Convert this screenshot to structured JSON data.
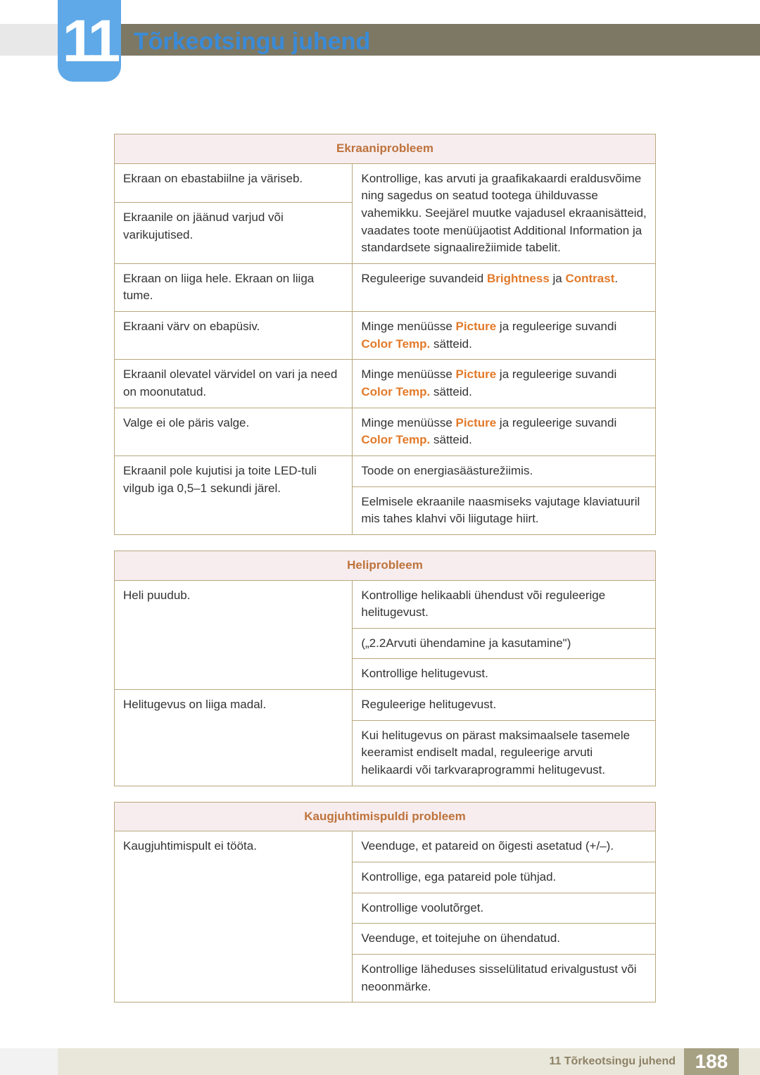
{
  "chapter_number": "11",
  "heading": "Tõrkeotsingu juhend",
  "colors": {
    "badge_bg": "#5fa9e8",
    "heading": "#3a8bd8",
    "stripe_right": "#7c7864",
    "stripe_left": "#e8e8e8",
    "table_border": "#b9a87e",
    "table_header_bg": "#f7edef",
    "table_header_text": "#be733b",
    "highlight": "#e27a2a",
    "footer_bg": "#e9e7da",
    "footer_text": "#8d8266",
    "footer_page_bg": "#a7a183"
  },
  "table1": {
    "header": "Ekraaniprobleem",
    "r1_left": "Ekraan on ebastabiilne ja väriseb.",
    "r2_left": "Ekraanile on jäänud varjud või varikujutised.",
    "r12_right": "Kontrollige, kas arvuti ja graafikakaardi eraldusvõime ning sagedus on seatud tootega ühilduvasse vahemikku. Seejärel muutke vajadusel ekraanisätteid, vaadates toote menüüjaotist Additional Information ja standardsete signaalirežiimide tabelit.",
    "r3_left": "Ekraan on liiga hele. Ekraan on liiga tume.",
    "r3_right_pre": "Reguleerige suvandeid ",
    "r3_right_hl1": "Brightness",
    "r3_right_mid": " ja ",
    "r3_right_hl2": "Contrast",
    "r3_right_post": ".",
    "r4_left": "Ekraani värv on ebapüsiv.",
    "picture_pre": "Minge menüüsse ",
    "picture_hl1": "Picture",
    "picture_mid": " ja reguleerige suvandi ",
    "picture_hl2": "Color Temp.",
    "picture_post": " sätteid.",
    "r5_left": "Ekraanil olevatel värvidel on vari ja need on moonutatud.",
    "r6_left": "Valge ei ole päris valge.",
    "r7_left": "Ekraanil pole kujutisi ja toite LED-tuli vilgub iga 0,5–1 sekundi järel.",
    "r7_right1": "Toode on energiasäästurežiimis.",
    "r7_right2": "Eelmisele ekraanile naasmiseks vajutage klaviatuuril mis tahes klahvi või liigutage hiirt."
  },
  "table2": {
    "header": "Heliprobleem",
    "r1_left": "Heli puudub.",
    "r1_right1": "Kontrollige helikaabli ühendust või reguleerige helitugevust.",
    "r1_right2": "(„2.2Arvuti ühendamine ja kasutamine\")",
    "r1_right3": "Kontrollige helitugevust.",
    "r2_left": "Helitugevus on liiga madal.",
    "r2_right1": "Reguleerige helitugevust.",
    "r2_right2": "Kui helitugevus on pärast maksimaalsele tasemele keeramist endiselt madal, reguleerige arvuti helikaardi või tarkvaraprogrammi helitugevust."
  },
  "table3": {
    "header": "Kaugjuhtimispuldi probleem",
    "r1_left": "Kaugjuhtimispult ei tööta.",
    "r1_right1": "Veenduge, et patareid on õigesti asetatud (+/–).",
    "r1_right2": "Kontrollige, ega patareid pole tühjad.",
    "r1_right3": "Kontrollige voolutõrget.",
    "r1_right4": "Veenduge, et toitejuhe on ühendatud.",
    "r1_right5": "Kontrollige läheduses sisselülitatud erivalgustust või neoonmärke."
  },
  "footer": {
    "text": "11 Tõrkeotsingu juhend",
    "page": "188"
  }
}
